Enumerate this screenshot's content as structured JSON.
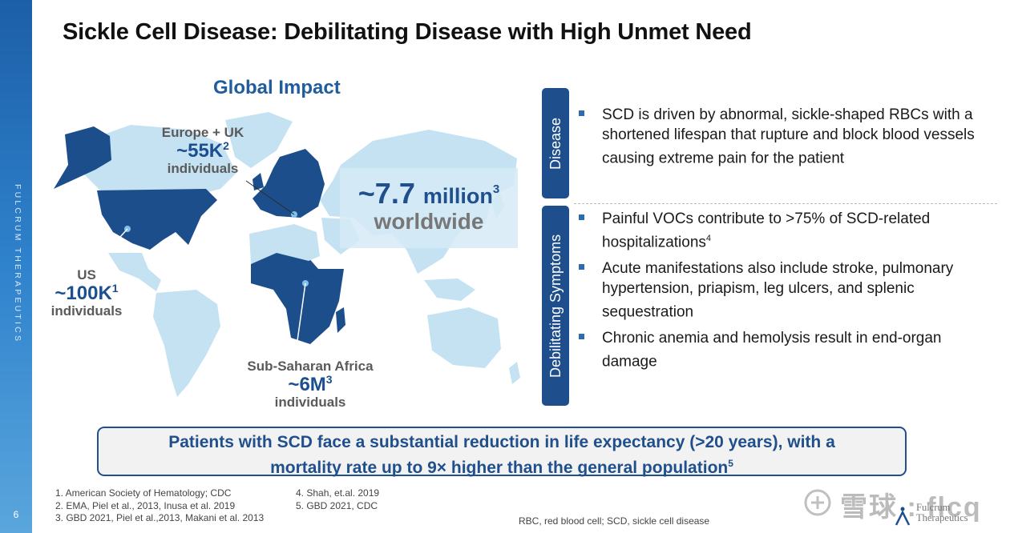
{
  "sidebar": {
    "brand": "FULCRUM THERAPEUTICS",
    "page_number": "6"
  },
  "title": "Sickle Cell Disease: Debilitating Disease with High Unmet Need",
  "map": {
    "title": "Global Impact",
    "europe": {
      "name": "Europe + UK",
      "value": "~55K",
      "sup": "2",
      "unit": "individuals"
    },
    "us": {
      "name": "US",
      "value": "~100K",
      "sup": "1",
      "unit": "individuals"
    },
    "africa": {
      "name": "Sub-Saharan Africa",
      "value": "~6M",
      "sup": "3",
      "unit": "individuals"
    },
    "worldwide": {
      "value": "~7.7",
      "unit": "million",
      "sup": "3",
      "label": "worldwide"
    },
    "colors": {
      "highlight": "#1c4e8c",
      "land": "#c5e2f3"
    }
  },
  "tabs": {
    "disease": "Disease",
    "symptoms": "Debilitating Symptoms"
  },
  "bullets": {
    "disease": [
      {
        "text": "SCD is driven by abnormal, sickle-shaped RBCs with a shortened lifespan that rupture and block blood vessels causing extreme pain for the patient",
        "sup": ""
      }
    ],
    "symptoms": [
      {
        "text": "Painful VOCs contribute to >75% of SCD-related hospitalizations",
        "sup": "4"
      },
      {
        "text": "Acute manifestations also include stroke, pulmonary hypertension, priapism, leg ulcers, and splenic sequestration",
        "sup": ""
      },
      {
        "text": "Chronic anemia and hemolysis result in end-organ damage",
        "sup": ""
      }
    ]
  },
  "callout": {
    "line1": "Patients with SCD face a substantial reduction in life expectancy (>20 years), with a",
    "line2": "mortality rate up to 9× higher than the general population",
    "sup": "5"
  },
  "references": {
    "left": [
      "1. American Society of Hematology; CDC",
      "2. EMA, Piel et al., 2013,  Inusa et al. 2019",
      "3. GBD 2021, Piel et al.,2013, Makani et al. 2013"
    ],
    "right": [
      "4. Shah, et.al. 2019",
      "5. GBD 2021, CDC"
    ]
  },
  "abbreviations": "RBC, red blood cell; SCD, sickle cell disease",
  "watermark": {
    "text": "雪球 : flcq"
  },
  "logo": {
    "line1": "Fulcrum",
    "line2": "Therapeutics",
    "icon": "fulcrum-logo-icon"
  }
}
